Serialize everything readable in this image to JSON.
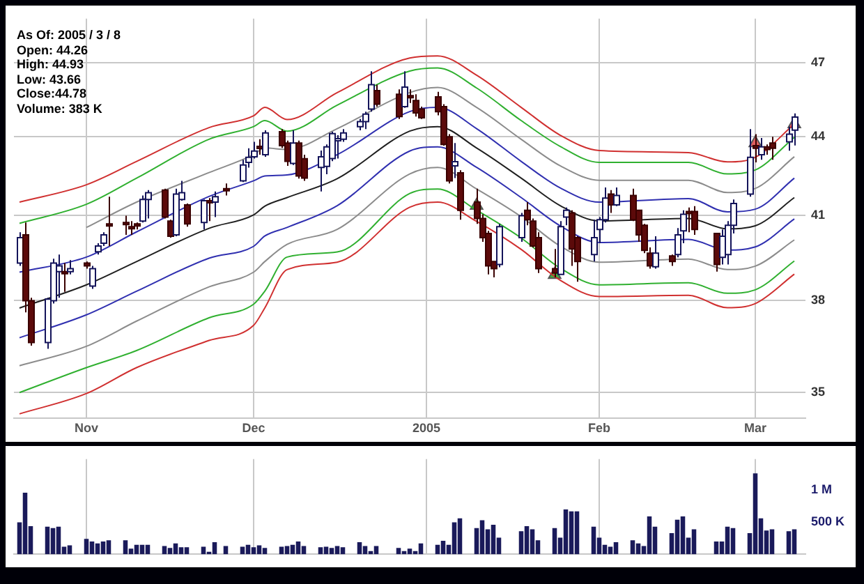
{
  "chart_data": [
    {
      "type": "candlestick",
      "annotations": [
        "As Of: 2005 / 3 / 8",
        "Open: 44.26",
        "High: 44.93",
        "Low: 43.66",
        "Close:44.78",
        "Volume: 383 K"
      ],
      "x": [
        "2004-10-20",
        "2004-10-21",
        "2004-10-22",
        "2004-10-25",
        "2004-10-26",
        "2004-10-27",
        "2004-10-28",
        "2004-10-29",
        "2004-11-01",
        "2004-11-02",
        "2004-11-03",
        "2004-11-04",
        "2004-11-05",
        "2004-11-08",
        "2004-11-09",
        "2004-11-10",
        "2004-11-11",
        "2004-11-12",
        "2004-11-15",
        "2004-11-16",
        "2004-11-17",
        "2004-11-18",
        "2004-11-19",
        "2004-11-22",
        "2004-11-23",
        "2004-11-24",
        "2004-11-26",
        "2004-11-29",
        "2004-11-30",
        "2004-12-01",
        "2004-12-02",
        "2004-12-03",
        "2004-12-06",
        "2004-12-07",
        "2004-12-08",
        "2004-12-09",
        "2004-12-10",
        "2004-12-13",
        "2004-12-14",
        "2004-12-15",
        "2004-12-16",
        "2004-12-17",
        "2004-12-20",
        "2004-12-21",
        "2004-12-22",
        "2004-12-23",
        "2004-12-27",
        "2004-12-28",
        "2004-12-29",
        "2004-12-30",
        "2004-12-31",
        "2005-01-03",
        "2005-01-04",
        "2005-01-05",
        "2005-01-06",
        "2005-01-07",
        "2005-01-10",
        "2005-01-11",
        "2005-01-12",
        "2005-01-13",
        "2005-01-14",
        "2005-01-18",
        "2005-01-19",
        "2005-01-20",
        "2005-01-21",
        "2005-01-24",
        "2005-01-25",
        "2005-01-26",
        "2005-01-27",
        "2005-01-28",
        "2005-01-31",
        "2005-02-01",
        "2005-02-02",
        "2005-02-03",
        "2005-02-04",
        "2005-02-07",
        "2005-02-08",
        "2005-02-09",
        "2005-02-10",
        "2005-02-11",
        "2005-02-14",
        "2005-02-15",
        "2005-02-16",
        "2005-02-17",
        "2005-02-18",
        "2005-02-22",
        "2005-02-23",
        "2005-02-24",
        "2005-02-25",
        "2005-02-28",
        "2005-03-01",
        "2005-03-02",
        "2005-03-03",
        "2005-03-04",
        "2005-03-07",
        "2005-03-08"
      ],
      "ohlc": [
        [
          39.3,
          40.4,
          39.2,
          40.2
        ],
        [
          40.3,
          40.75,
          37.6,
          38.0
        ],
        [
          38.0,
          38.1,
          36.5,
          36.6
        ],
        [
          36.6,
          38.1,
          36.4,
          38.05
        ],
        [
          38.0,
          39.45,
          37.9,
          39.3
        ],
        [
          39.0,
          39.6,
          38.1,
          39.2
        ],
        [
          39.0,
          39.3,
          38.3,
          38.95
        ],
        [
          39.0,
          39.4,
          38.9,
          39.1
        ],
        [
          39.3,
          39.35,
          39.1,
          39.2
        ],
        [
          38.5,
          39.2,
          38.4,
          39.1
        ],
        [
          39.7,
          40.0,
          39.6,
          39.9
        ],
        [
          40.0,
          40.4,
          39.9,
          40.3
        ],
        [
          40.7,
          41.7,
          39.9,
          40.65
        ],
        [
          40.75,
          41.0,
          40.3,
          40.7
        ],
        [
          40.6,
          40.8,
          40.3,
          40.55
        ],
        [
          40.7,
          40.75,
          40.5,
          40.65
        ],
        [
          40.8,
          41.75,
          40.75,
          41.6
        ],
        [
          41.6,
          41.95,
          40.9,
          41.85
        ],
        [
          41.95,
          42.0,
          40.9,
          40.95
        ],
        [
          40.8,
          40.85,
          40.2,
          40.25
        ],
        [
          40.3,
          42.0,
          40.25,
          41.8
        ],
        [
          41.6,
          42.3,
          41.55,
          41.85
        ],
        [
          41.4,
          41.45,
          40.6,
          40.7
        ],
        [
          40.75,
          41.6,
          40.5,
          41.55
        ],
        [
          41.55,
          41.65,
          40.8,
          41.5
        ],
        [
          41.5,
          41.9,
          40.95,
          41.7
        ],
        [
          42.0,
          42.2,
          41.75,
          41.95
        ],
        [
          42.3,
          43.1,
          42.25,
          42.9
        ],
        [
          43.0,
          43.55,
          42.8,
          43.2
        ],
        [
          43.22,
          43.8,
          43.15,
          43.44
        ],
        [
          43.62,
          43.9,
          43.3,
          43.58
        ],
        [
          43.3,
          44.25,
          43.22,
          44.15
        ],
        [
          44.2,
          44.3,
          43.56,
          43.65
        ],
        [
          43.75,
          43.85,
          42.87,
          43.04
        ],
        [
          42.96,
          44.25,
          42.9,
          43.75
        ],
        [
          43.75,
          43.85,
          42.38,
          42.48
        ],
        [
          43.14,
          43.3,
          42.3,
          42.4
        ],
        [
          42.81,
          43.46,
          41.9,
          43.22
        ],
        [
          42.85,
          43.7,
          42.55,
          43.6
        ],
        [
          43.15,
          44.2,
          43.05,
          44.12
        ],
        [
          43.88,
          44.06,
          43.15,
          43.92
        ],
        [
          43.9,
          44.3,
          43.8,
          44.15
        ],
        [
          44.4,
          44.7,
          44.25,
          44.6
        ],
        [
          44.6,
          45.0,
          44.3,
          44.9
        ],
        [
          45.1,
          46.65,
          45.0,
          46.1
        ],
        [
          45.85,
          46.1,
          45.2,
          45.3
        ],
        [
          45.7,
          45.9,
          44.7,
          44.8
        ],
        [
          45.2,
          46.65,
          45.15,
          46.0
        ],
        [
          45.65,
          45.9,
          45.35,
          45.6
        ],
        [
          45.45,
          45.7,
          44.8,
          44.95
        ],
        [
          45.1,
          45.2,
          44.7,
          44.75
        ],
        [
          45.6,
          45.8,
          44.85,
          45.0
        ],
        [
          45.2,
          45.3,
          43.65,
          43.7
        ],
        [
          44.0,
          44.1,
          42.2,
          42.3
        ],
        [
          42.87,
          43.75,
          42.4,
          43.03
        ],
        [
          42.6,
          42.7,
          40.85,
          41.2
        ],
        [
          41.5,
          42.0,
          40.7,
          40.9
        ],
        [
          40.9,
          41.05,
          40.05,
          40.2
        ],
        [
          40.35,
          40.45,
          38.9,
          39.2
        ],
        [
          39.35,
          39.35,
          38.8,
          39.1
        ],
        [
          39.25,
          40.7,
          39.15,
          40.6
        ],
        [
          40.2,
          41.1,
          40.05,
          41.0
        ],
        [
          41.2,
          41.5,
          40.65,
          40.85
        ],
        [
          40.8,
          40.9,
          39.85,
          39.9
        ],
        [
          40.2,
          40.4,
          38.95,
          39.1
        ],
        [
          39.1,
          39.8,
          38.8,
          38.95
        ],
        [
          38.9,
          40.8,
          38.9,
          40.6
        ],
        [
          40.95,
          41.3,
          40.65,
          41.2
        ],
        [
          41.1,
          41.2,
          39.2,
          39.8
        ],
        [
          40.2,
          40.25,
          38.65,
          39.35
        ],
        [
          39.6,
          40.85,
          39.35,
          40.2
        ],
        [
          40.5,
          40.95,
          40.0,
          40.85
        ],
        [
          40.85,
          42.05,
          40.75,
          41.65
        ],
        [
          41.8,
          41.95,
          41.1,
          41.4
        ],
        [
          41.4,
          42.05,
          41.35,
          41.75
        ],
        [
          41.75,
          42.0,
          40.8,
          40.85
        ],
        [
          41.2,
          41.2,
          40.05,
          40.3
        ],
        [
          40.65,
          40.7,
          39.65,
          39.75
        ],
        [
          39.65,
          39.85,
          39.1,
          39.2
        ],
        [
          39.17,
          40.25,
          39.1,
          39.65
        ],
        [
          39.55,
          39.6,
          39.2,
          39.35
        ],
        [
          39.6,
          40.55,
          39.5,
          40.3
        ],
        [
          40.45,
          41.2,
          40.0,
          41.05
        ],
        [
          41.15,
          41.3,
          40.4,
          41.1
        ],
        [
          41.15,
          41.35,
          40.3,
          40.5
        ],
        [
          40.35,
          40.35,
          39.0,
          39.25
        ],
        [
          39.5,
          40.5,
          39.25,
          40.25
        ],
        [
          39.6,
          40.8,
          39.25,
          40.65
        ],
        [
          40.65,
          41.6,
          40.35,
          41.45
        ],
        [
          41.8,
          44.3,
          41.7,
          43.2
        ],
        [
          43.65,
          44.1,
          43.0,
          43.55
        ],
        [
          43.3,
          43.95,
          43.1,
          43.6
        ],
        [
          43.6,
          43.7,
          43.3,
          43.5
        ],
        [
          43.75,
          44.0,
          43.1,
          43.55
        ],
        [
          43.8,
          44.4,
          43.45,
          44.1
        ],
        [
          44.26,
          44.93,
          43.66,
          44.78
        ]
      ],
      "series": [
        {
          "type": "line",
          "color": "#d03030",
          "x": [
            "2004-10-20",
            "2004-11-01",
            "2004-11-10",
            "2004-11-23",
            "2004-12-01",
            "2004-12-03",
            "2004-12-07",
            "2004-12-16",
            "2004-12-29",
            "2005-01-03",
            "2005-01-10",
            "2005-01-18",
            "2005-01-25",
            "2005-02-01",
            "2005-02-17",
            "2005-02-24",
            "2005-03-01",
            "2005-03-08"
          ],
          "values": [
            41.5,
            42.15,
            43.04,
            44.36,
            44.83,
            45.17,
            44.68,
            45.77,
            47.21,
            47.3,
            46.49,
            45.17,
            44.06,
            43.46,
            43.38,
            43.02,
            43.2,
            44.5
          ]
        },
        {
          "type": "line",
          "color": "#30b030",
          "x": [
            "2004-10-20",
            "2004-11-01",
            "2004-11-10",
            "2004-11-23",
            "2004-12-01",
            "2004-12-03",
            "2004-12-07",
            "2004-12-16",
            "2004-12-29",
            "2005-01-03",
            "2005-01-10",
            "2005-01-18",
            "2005-01-25",
            "2005-02-01",
            "2005-02-17",
            "2005-02-24",
            "2005-03-01",
            "2005-03-08"
          ],
          "values": [
            40.72,
            41.42,
            42.4,
            43.9,
            44.4,
            44.64,
            44.22,
            45.26,
            46.66,
            46.79,
            45.96,
            44.64,
            43.62,
            43.0,
            43.0,
            42.56,
            42.71,
            43.98
          ]
        },
        {
          "type": "line",
          "color": "#8c8c8c",
          "x": [
            "2004-11-01",
            "2004-11-10",
            "2004-11-23",
            "2004-12-01",
            "2004-12-03",
            "2004-12-07",
            "2004-12-16",
            "2004-12-29",
            "2005-01-03",
            "2005-01-10",
            "2005-01-18",
            "2005-01-25",
            "2005-02-01",
            "2005-02-17",
            "2005-02-24",
            "2005-03-01",
            "2005-03-08"
          ],
          "values": [
            40.57,
            41.5,
            42.61,
            43.3,
            43.56,
            43.5,
            44.32,
            45.77,
            45.98,
            45.17,
            43.9,
            42.87,
            42.32,
            42.32,
            41.86,
            42.01,
            43.22
          ]
        },
        {
          "type": "line",
          "color": "#3030b0",
          "x": [
            "2004-10-20",
            "2004-11-01",
            "2004-11-10",
            "2004-11-23",
            "2004-12-01",
            "2004-12-03",
            "2004-12-07",
            "2004-12-16",
            "2004-12-29",
            "2005-01-03",
            "2005-01-10",
            "2005-01-18",
            "2005-01-25",
            "2005-02-01",
            "2005-02-17",
            "2005-02-24",
            "2005-03-01",
            "2005-03-08"
          ],
          "values": [
            38.98,
            39.51,
            40.41,
            41.71,
            42.3,
            42.48,
            42.52,
            43.3,
            45.0,
            45.17,
            44.32,
            43.04,
            42.03,
            41.5,
            41.63,
            41.14,
            41.24,
            42.4
          ]
        },
        {
          "type": "line",
          "color": "#202020",
          "x": [
            "2004-10-20",
            "2004-11-01",
            "2004-11-10",
            "2004-11-23",
            "2004-12-01",
            "2004-12-03",
            "2004-12-07",
            "2004-12-16",
            "2004-12-29",
            "2005-01-03",
            "2005-01-10",
            "2005-01-18",
            "2005-01-25",
            "2005-02-01",
            "2005-02-17",
            "2005-02-24",
            "2005-03-01",
            "2005-03-08"
          ],
          "values": [
            37.75,
            38.54,
            39.35,
            40.54,
            41.03,
            41.35,
            41.67,
            42.38,
            44.22,
            44.4,
            43.56,
            42.4,
            41.37,
            40.81,
            40.9,
            40.52,
            40.63,
            41.67
          ]
        },
        {
          "type": "line",
          "color": "#3030b0",
          "x": [
            "2004-10-20",
            "2004-11-01",
            "2004-11-10",
            "2004-11-23",
            "2004-12-01",
            "2004-12-03",
            "2004-12-07",
            "2004-12-16",
            "2004-12-29",
            "2005-01-03",
            "2005-01-10",
            "2005-01-18",
            "2005-01-25",
            "2005-02-01",
            "2005-02-17",
            "2005-02-24",
            "2005-03-01",
            "2005-03-08"
          ],
          "values": [
            36.76,
            37.52,
            38.32,
            39.47,
            39.89,
            40.26,
            40.57,
            41.37,
            43.44,
            43.6,
            42.81,
            41.67,
            40.63,
            40.03,
            40.14,
            39.76,
            39.87,
            40.88
          ]
        },
        {
          "type": "line",
          "color": "#8c8c8c",
          "x": [
            "2004-10-20",
            "2004-11-01",
            "2004-11-10",
            "2004-11-23",
            "2004-12-01",
            "2004-12-03",
            "2004-12-07",
            "2004-12-16",
            "2004-12-29",
            "2005-01-03",
            "2005-01-10",
            "2005-01-18",
            "2005-01-25",
            "2005-02-01",
            "2005-02-17",
            "2005-02-24",
            "2005-03-01",
            "2005-03-08"
          ],
          "values": [
            35.85,
            36.48,
            37.31,
            38.47,
            38.98,
            39.35,
            39.96,
            40.5,
            42.56,
            42.81,
            41.99,
            40.96,
            39.9,
            39.33,
            39.44,
            39.07,
            39.19,
            40.12
          ]
        },
        {
          "type": "line",
          "color": "#30b030",
          "x": [
            "2004-10-20",
            "2004-11-01",
            "2004-11-10",
            "2004-11-23",
            "2004-12-01",
            "2004-12-03",
            "2004-12-07",
            "2004-12-16",
            "2004-12-29",
            "2005-01-03",
            "2005-01-10",
            "2005-01-18",
            "2005-01-25",
            "2005-02-01",
            "2005-02-17",
            "2005-02-24",
            "2005-03-01",
            "2005-03-08"
          ],
          "values": [
            35.0,
            35.79,
            36.34,
            37.42,
            37.88,
            38.32,
            39.51,
            39.69,
            41.82,
            41.99,
            41.2,
            40.19,
            39.12,
            38.54,
            38.61,
            38.25,
            38.37,
            39.37
          ]
        },
        {
          "type": "line",
          "color": "#d03030",
          "x": [
            "2004-10-20",
            "2004-11-01",
            "2004-11-10",
            "2004-11-23",
            "2004-12-01",
            "2004-12-03",
            "2004-12-07",
            "2004-12-16",
            "2004-12-29",
            "2005-01-03",
            "2005-01-10",
            "2005-01-18",
            "2005-01-25",
            "2005-02-01",
            "2005-02-17",
            "2005-02-24",
            "2005-03-01",
            "2005-03-08"
          ],
          "values": [
            34.34,
            34.97,
            35.79,
            36.67,
            37.17,
            37.75,
            39.07,
            39.33,
            41.31,
            41.5,
            40.79,
            39.78,
            38.7,
            38.14,
            38.18,
            37.76,
            37.9,
            38.91
          ]
        },
        {
          "type": "scatter",
          "color": "#40b040",
          "marker": "triangle",
          "x": [
            "2005-01-10",
            "2005-01-24"
          ],
          "values": [
            41.37,
            38.89
          ]
        },
        {
          "type": "scatter",
          "color": "#e06060",
          "marker": "triangle",
          "x": [
            "2005-03-01",
            "2005-03-08"
          ],
          "values": [
            43.75,
            44.5
          ]
        }
      ],
      "xlim": [
        "2004-10-19",
        "2005-03-10"
      ],
      "xticks": [
        {
          "value": "2004-11-01",
          "label": "Nov"
        },
        {
          "value": "2004-12-01",
          "label": "Dec"
        },
        {
          "value": "2005-01-01",
          "label": "2005"
        },
        {
          "value": "2005-02-01",
          "label": "Feb"
        },
        {
          "value": "2005-03-01",
          "label": "Mar"
        }
      ],
      "ylim": [
        34.2,
        48.9
      ],
      "yticks": [
        35,
        38,
        41,
        44,
        47
      ],
      "log": true,
      "grid": true
    },
    {
      "type": "bar",
      "color": "#1a1a5a",
      "x": [
        "2004-10-20",
        "2004-10-21",
        "2004-10-22",
        "2004-10-25",
        "2004-10-26",
        "2004-10-27",
        "2004-10-28",
        "2004-10-29",
        "2004-11-01",
        "2004-11-02",
        "2004-11-03",
        "2004-11-04",
        "2004-11-05",
        "2004-11-08",
        "2004-11-09",
        "2004-11-10",
        "2004-11-11",
        "2004-11-12",
        "2004-11-15",
        "2004-11-16",
        "2004-11-17",
        "2004-11-18",
        "2004-11-19",
        "2004-11-22",
        "2004-11-23",
        "2004-11-24",
        "2004-11-26",
        "2004-11-29",
        "2004-11-30",
        "2004-12-01",
        "2004-12-02",
        "2004-12-03",
        "2004-12-06",
        "2004-12-07",
        "2004-12-08",
        "2004-12-09",
        "2004-12-10",
        "2004-12-13",
        "2004-12-14",
        "2004-12-15",
        "2004-12-16",
        "2004-12-17",
        "2004-12-20",
        "2004-12-21",
        "2004-12-22",
        "2004-12-23",
        "2004-12-27",
        "2004-12-28",
        "2004-12-29",
        "2004-12-30",
        "2004-12-31",
        "2005-01-03",
        "2005-01-04",
        "2005-01-05",
        "2005-01-06",
        "2005-01-07",
        "2005-01-10",
        "2005-01-11",
        "2005-01-12",
        "2005-01-13",
        "2005-01-14",
        "2005-01-18",
        "2005-01-19",
        "2005-01-20",
        "2005-01-21",
        "2005-01-24",
        "2005-01-25",
        "2005-01-26",
        "2005-01-27",
        "2005-01-28",
        "2005-01-31",
        "2005-02-01",
        "2005-02-02",
        "2005-02-03",
        "2005-02-04",
        "2005-02-07",
        "2005-02-08",
        "2005-02-09",
        "2005-02-10",
        "2005-02-11",
        "2005-02-14",
        "2005-02-15",
        "2005-02-16",
        "2005-02-17",
        "2005-02-18",
        "2005-02-22",
        "2005-02-23",
        "2005-02-24",
        "2005-02-25",
        "2005-02-28",
        "2005-03-01",
        "2005-03-02",
        "2005-03-03",
        "2005-03-04",
        "2005-03-07",
        "2005-03-08"
      ],
      "values": [
        490000,
        950000,
        430000,
        420000,
        400000,
        420000,
        110000,
        130000,
        230000,
        190000,
        160000,
        190000,
        210000,
        210000,
        80000,
        140000,
        140000,
        140000,
        120000,
        90000,
        160000,
        100000,
        100000,
        110000,
        30000,
        180000,
        120000,
        110000,
        140000,
        100000,
        130000,
        90000,
        110000,
        120000,
        140000,
        190000,
        120000,
        100000,
        110000,
        90000,
        120000,
        100000,
        180000,
        120000,
        40000,
        120000,
        90000,
        40000,
        80000,
        40000,
        160000,
        140000,
        200000,
        140000,
        490000,
        550000,
        400000,
        520000,
        380000,
        450000,
        250000,
        350000,
        430000,
        380000,
        210000,
        400000,
        250000,
        690000,
        660000,
        660000,
        420000,
        250000,
        140000,
        110000,
        180000,
        210000,
        160000,
        120000,
        580000,
        420000,
        320000,
        530000,
        580000,
        250000,
        380000,
        190000,
        190000,
        420000,
        400000,
        320000,
        1250000,
        550000,
        360000,
        380000,
        350000,
        380000
      ],
      "xlim": [
        "2004-10-19",
        "2005-03-10"
      ],
      "xticks": [
        {
          "value": "2004-11-01",
          "label": null
        },
        {
          "value": "2004-12-01",
          "label": null
        },
        {
          "value": "2005-01-01",
          "label": null
        },
        {
          "value": "2005-02-01",
          "label": null
        },
        {
          "value": "2005-03-01",
          "label": null
        }
      ],
      "ylim": [
        0,
        1480000
      ],
      "yticks": [
        {
          "value": 500000,
          "label": "500 K"
        },
        {
          "value": 1000000,
          "label": "1 M"
        }
      ],
      "grid": "x",
      "tick_labels": "y"
    }
  ]
}
